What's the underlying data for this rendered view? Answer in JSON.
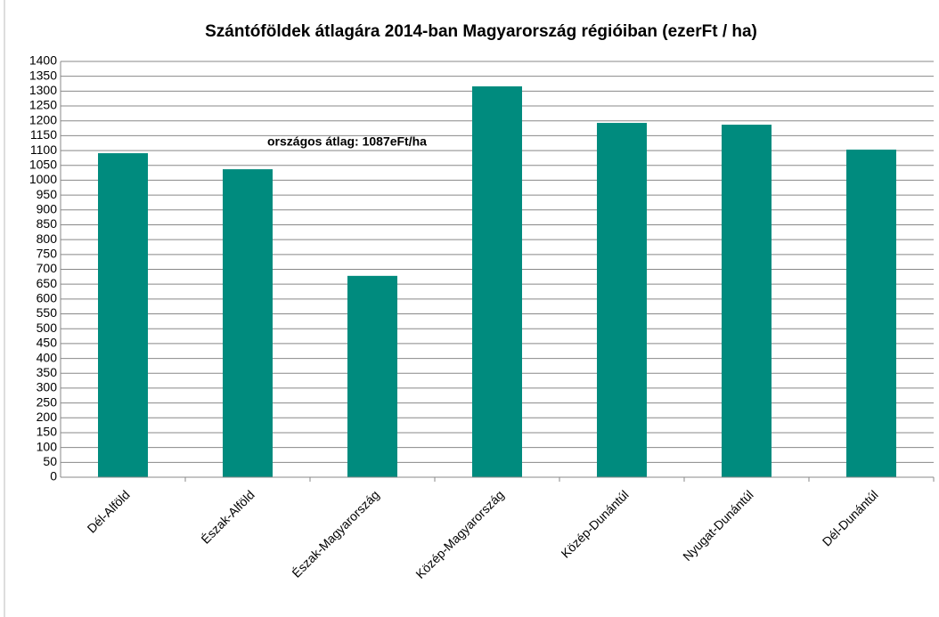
{
  "chart_data": {
    "type": "bar",
    "title": "Szántóföldek átlagára 2014-ban Magyarország régióiban (ezerFt / ha)",
    "annotation": "országos átlag: 1087eFt/ha",
    "categories": [
      "Dél-Alföld",
      "Észak-Alföld",
      "Észak-Magyarország",
      "Közép-Magyarország",
      "Közép-Dunántúl",
      "Nyugat-Dunántúl",
      "Dél-Dunántúl"
    ],
    "values": [
      1091,
      1037,
      678,
      1316,
      1193,
      1187,
      1103
    ],
    "color": "#008b7e",
    "ylim": [
      0,
      1400
    ],
    "yticks": [
      0,
      50,
      100,
      150,
      200,
      250,
      300,
      350,
      400,
      450,
      500,
      550,
      600,
      650,
      700,
      750,
      800,
      850,
      900,
      950,
      1000,
      1050,
      1100,
      1150,
      1200,
      1250,
      1300,
      1350,
      1400
    ],
    "grid": true
  }
}
